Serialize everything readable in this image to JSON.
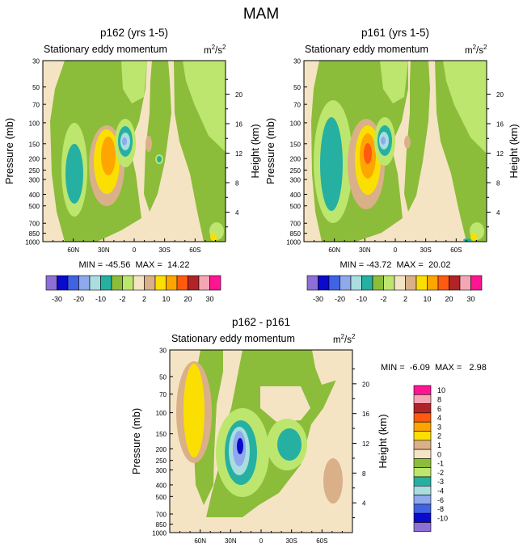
{
  "figure": {
    "title": "MAM"
  },
  "colors": {
    "neg30": "#8e6fd6",
    "neg20": "#0a0acc",
    "neg15": "#3f63e2",
    "neg10": "#8ea9ec",
    "neg5": "#a9dde0",
    "neg3": "#25b0a2",
    "neg2": "#8cbd3a",
    "neg0": "#bde66e",
    "pos0": "#f5e4c4",
    "pos2": "#d9b088",
    "pos5": "#fbdf02",
    "pos10": "#ffa500",
    "pos15": "#ff5a10",
    "pos20": "#b02428",
    "pos25": "#f4a6b4",
    "pos30": "#ff1493"
  },
  "chart_data": [
    {
      "type": "contour",
      "title": "p162 (yrs 1-5)",
      "subtitle_left": "Stationary eddy momentum",
      "units": "m²/s²",
      "units_base": "m",
      "units_num": "2",
      "units_den": "s",
      "ylabel": "Pressure (mb)",
      "ylabel_right": "Height (km)",
      "x_ticks": [
        "60N",
        "30N",
        "0",
        "30S",
        "60S"
      ],
      "x_values": [
        60,
        30,
        0,
        -30,
        -60
      ],
      "xlim": [
        90,
        -90
      ],
      "y_ticks": [
        "30",
        "50",
        "70",
        "100",
        "150",
        "200",
        "250",
        "300",
        "400",
        "500",
        "700",
        "850",
        "1000"
      ],
      "y_values": [
        30,
        50,
        70,
        100,
        150,
        200,
        250,
        300,
        400,
        500,
        700,
        850,
        1000
      ],
      "ylim": [
        30,
        1000
      ],
      "height_ticks": [
        "4",
        "8",
        "12",
        "16",
        "20"
      ],
      "height_values": [
        4,
        8,
        12,
        16,
        20
      ],
      "min_label": "MIN = -45.56  MAX =  14.22",
      "min": -45.56,
      "max": 14.22,
      "colorbar_labels": [
        "-30",
        "-20",
        "-10",
        "-2",
        "2",
        "10",
        "20",
        "30"
      ],
      "levels": [
        -30,
        -20,
        -15,
        -10,
        -5,
        -3,
        -2,
        0,
        2,
        5,
        10,
        15,
        20,
        25,
        30
      ],
      "features": [
        {
          "lat": 58,
          "p": 250,
          "value": -3
        },
        {
          "lat": 28,
          "p": 200,
          "value": 10
        },
        {
          "lat": 12,
          "p": 150,
          "value": -20
        },
        {
          "lat": -22,
          "p": 200,
          "value": -3
        }
      ]
    },
    {
      "type": "contour",
      "title": "p161 (yrs 1-5)",
      "subtitle_left": "Stationary eddy momentum",
      "units": "m²/s²",
      "units_base": "m",
      "units_num": "2",
      "units_den": "s",
      "ylabel": "Pressure (mb)",
      "ylabel_right": "Height (km)",
      "x_ticks": [
        "60N",
        "30N",
        "0",
        "30S",
        "60S"
      ],
      "x_values": [
        60,
        30,
        0,
        -30,
        -60
      ],
      "xlim": [
        90,
        -90
      ],
      "y_ticks": [
        "30",
        "50",
        "70",
        "100",
        "150",
        "200",
        "250",
        "300",
        "400",
        "500",
        "700",
        "850",
        "1000"
      ],
      "y_values": [
        30,
        50,
        70,
        100,
        150,
        200,
        250,
        300,
        400,
        500,
        700,
        850,
        1000
      ],
      "ylim": [
        30,
        1000
      ],
      "height_ticks": [
        "4",
        "8",
        "12",
        "16",
        "20"
      ],
      "height_values": [
        4,
        8,
        12,
        16,
        20
      ],
      "min_label": "MIN = -43.72  MAX =  20.02",
      "min": -43.72,
      "max": 20.02,
      "colorbar_labels": [
        "-30",
        "-20",
        "-10",
        "-2",
        "2",
        "10",
        "20",
        "30"
      ],
      "levels": [
        -30,
        -20,
        -15,
        -10,
        -5,
        -3,
        -2,
        0,
        2,
        5,
        10,
        15,
        20,
        25,
        30
      ],
      "features": [
        {
          "lat": 58,
          "p": 200,
          "value": -3
        },
        {
          "lat": 28,
          "p": 200,
          "value": 15
        },
        {
          "lat": 12,
          "p": 150,
          "value": -15
        }
      ]
    },
    {
      "type": "contour",
      "title": "p162 - p161",
      "subtitle_left": "Stationary eddy momentum",
      "units": "m²/s²",
      "units_base": "m",
      "units_num": "2",
      "units_den": "s",
      "ylabel": "Pressure (mb)",
      "ylabel_right": "Height (km)",
      "x_ticks": [
        "60N",
        "30N",
        "0",
        "30S",
        "60S"
      ],
      "x_values": [
        60,
        30,
        0,
        -30,
        -60
      ],
      "xlim": [
        90,
        -90
      ],
      "y_ticks": [
        "30",
        "50",
        "70",
        "100",
        "150",
        "200",
        "250",
        "300",
        "400",
        "500",
        "700",
        "850",
        "1000"
      ],
      "y_values": [
        30,
        50,
        70,
        100,
        150,
        200,
        250,
        300,
        400,
        500,
        700,
        850,
        1000
      ],
      "ylim": [
        30,
        1000
      ],
      "height_ticks": [
        "4",
        "8",
        "12",
        "16",
        "20"
      ],
      "height_values": [
        4,
        8,
        12,
        16,
        20
      ],
      "min_label": "MIN =  -6.09  MAX =   2.98",
      "min": -6.09,
      "max": 2.98,
      "colorbar_labels": [
        "10",
        "8",
        "6",
        "4",
        "3",
        "2",
        "1",
        "0",
        "-1",
        "-2",
        "-3",
        "-4",
        "-6",
        "-8",
        "-10"
      ],
      "levels": [
        -10,
        -8,
        -6,
        -4,
        -3,
        -2,
        -1,
        0,
        1,
        2,
        3,
        4,
        6,
        8,
        10
      ],
      "features": [
        {
          "lat": 62,
          "p": 150,
          "value": 2
        },
        {
          "lat": 28,
          "p": 200,
          "value": -4
        },
        {
          "lat": -15,
          "p": 200,
          "value": -3
        }
      ]
    }
  ]
}
